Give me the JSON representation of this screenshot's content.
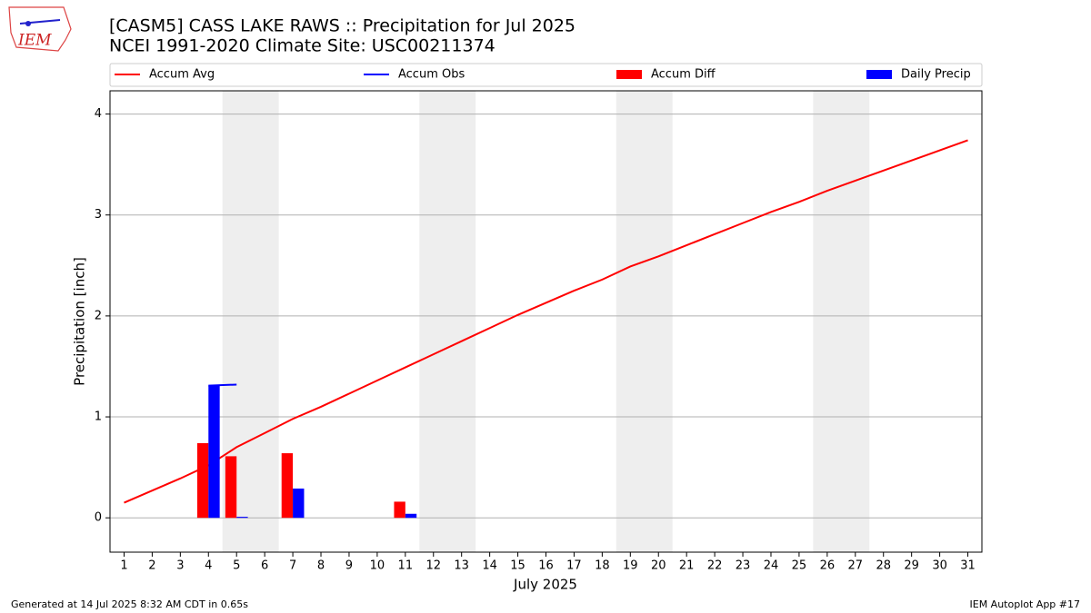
{
  "chart_data": {
    "type": "bar",
    "title": "[CASM5] CASS LAKE RAWS :: Precipitation for Jul 2025",
    "subtitle": "NCEI 1991-2020 Climate Site: USC00211374",
    "logo_text": "IEM",
    "x_label": "July 2025",
    "y_label": "Precipitation [inch]",
    "footer_left": "Generated at 14 Jul 2025 8:32 AM CDT in 0.65s",
    "footer_right": "IEM Autoplot App #17",
    "x": [
      1,
      2,
      3,
      4,
      5,
      6,
      7,
      8,
      9,
      10,
      11,
      12,
      13,
      14,
      15,
      16,
      17,
      18,
      19,
      20,
      21,
      22,
      23,
      24,
      25,
      26,
      27,
      28,
      29,
      30,
      31
    ],
    "series": [
      {
        "name": "Accum Avg",
        "type": "line",
        "color": "#ff0000",
        "values": [
          0.15,
          0.27,
          0.39,
          0.52,
          0.7,
          0.84,
          0.98,
          1.1,
          1.23,
          1.36,
          1.49,
          1.62,
          1.75,
          1.88,
          2.01,
          2.13,
          2.25,
          2.36,
          2.49,
          2.59,
          2.7,
          2.81,
          2.92,
          3.03,
          3.13,
          3.24,
          3.34,
          3.44,
          3.54,
          3.64,
          3.74
        ]
      },
      {
        "name": "Accum Obs",
        "type": "line",
        "color": "#0000ff",
        "values": [
          null,
          null,
          null,
          1.31,
          1.32,
          null,
          null,
          null,
          null,
          null,
          null,
          null,
          null,
          null,
          null,
          null,
          null,
          null,
          null,
          null,
          null,
          null,
          null,
          null,
          null,
          null,
          null,
          null,
          null,
          null,
          null
        ]
      },
      {
        "name": "Accum Diff",
        "type": "bar",
        "color": "#ff0000",
        "values": [
          null,
          null,
          null,
          0.74,
          0.61,
          null,
          0.64,
          null,
          null,
          null,
          0.16,
          null,
          null,
          null,
          null,
          null,
          null,
          null,
          null,
          null,
          null,
          null,
          null,
          null,
          null,
          null,
          null,
          null,
          null,
          null,
          null
        ]
      },
      {
        "name": "Daily Precip",
        "type": "bar",
        "color": "#0000ff",
        "values": [
          null,
          null,
          null,
          1.31,
          0.01,
          null,
          0.29,
          null,
          null,
          null,
          0.04,
          null,
          null,
          null,
          null,
          null,
          null,
          null,
          null,
          null,
          null,
          null,
          null,
          null,
          null,
          null,
          null,
          null,
          null,
          null,
          null
        ]
      }
    ],
    "highlight_spans": [
      [
        4.5,
        6.5
      ],
      [
        11.5,
        13.5
      ],
      [
        18.5,
        20.5
      ],
      [
        25.5,
        27.5
      ]
    ],
    "highlight_color": "#eeeeee",
    "xlim": [
      0.5,
      31.5
    ],
    "ylim": [
      -0.34,
      4.23
    ],
    "xticks": [
      1,
      2,
      3,
      4,
      5,
      6,
      7,
      8,
      9,
      10,
      11,
      12,
      13,
      14,
      15,
      16,
      17,
      18,
      19,
      20,
      21,
      22,
      23,
      24,
      25,
      26,
      27,
      28,
      29,
      30,
      31
    ],
    "yticks": [
      0,
      1,
      2,
      3,
      4
    ],
    "grid": true
  }
}
